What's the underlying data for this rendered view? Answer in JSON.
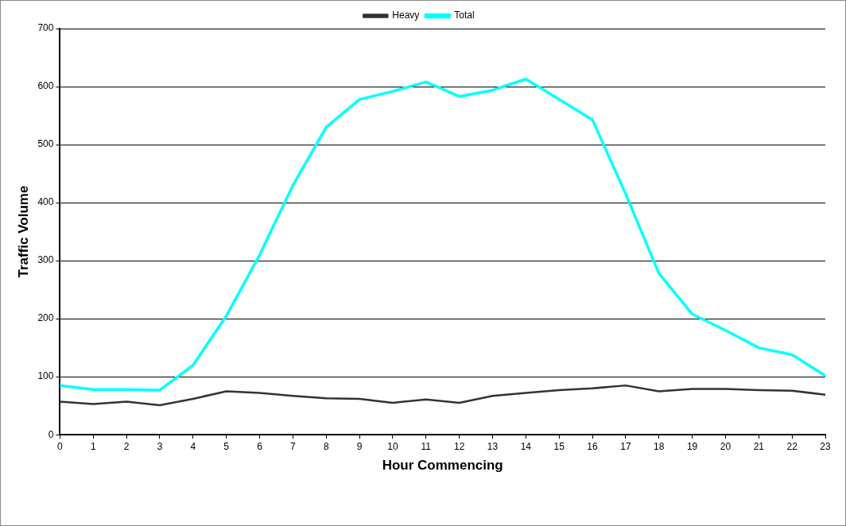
{
  "chart_data": {
    "type": "line",
    "xlabel": "Hour Commencing",
    "ylabel": "Traffic Volume",
    "x": [
      0,
      1,
      2,
      3,
      4,
      5,
      6,
      7,
      8,
      9,
      10,
      11,
      12,
      13,
      14,
      15,
      16,
      17,
      18,
      19,
      20,
      21,
      22,
      23
    ],
    "series": [
      {
        "name": "Heavy",
        "color": "#333333",
        "values": [
          57,
          53,
          57,
          51,
          62,
          75,
          72,
          67,
          63,
          62,
          55,
          61,
          55,
          67,
          72,
          77,
          80,
          85,
          75,
          79,
          79,
          77,
          76,
          69
        ]
      },
      {
        "name": "Total",
        "color": "#00ffff",
        "values": [
          85,
          78,
          78,
          77,
          120,
          205,
          310,
          430,
          530,
          578,
          592,
          608,
          583,
          594,
          613,
          578,
          543,
          415,
          278,
          208,
          180,
          150,
          138,
          102
        ]
      }
    ],
    "xlim": [
      0,
      23
    ],
    "xticks": [
      0,
      1,
      2,
      3,
      4,
      5,
      6,
      7,
      8,
      9,
      10,
      11,
      12,
      13,
      14,
      15,
      16,
      17,
      18,
      19,
      20,
      21,
      22,
      23
    ],
    "ylim": [
      0,
      700
    ],
    "yticks": [
      0,
      100,
      200,
      300,
      400,
      500,
      600,
      700
    ],
    "grid": "y",
    "legend": "top",
    "marker": "none",
    "line_style": "solid"
  }
}
